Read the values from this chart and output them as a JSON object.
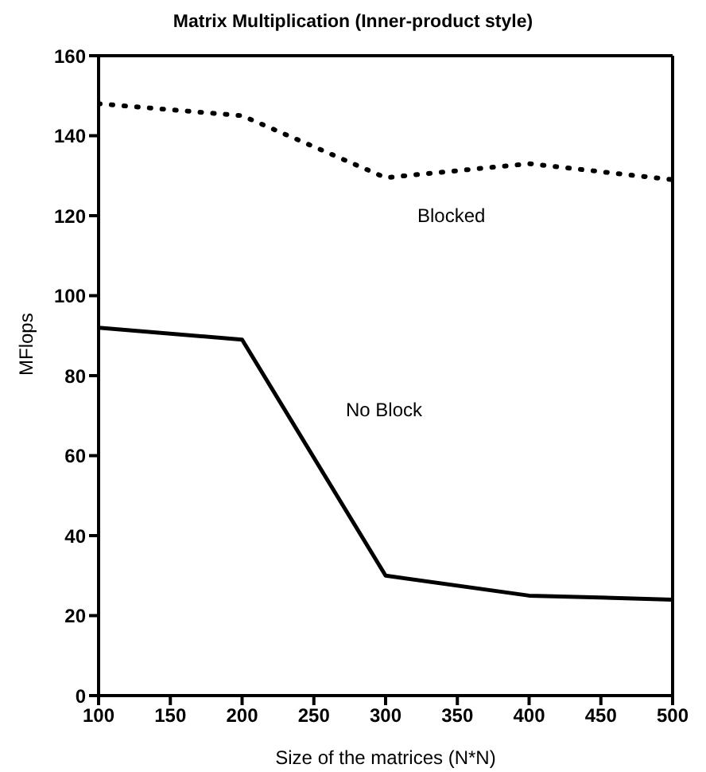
{
  "chart_data": {
    "type": "line",
    "title": "Matrix Multiplication (Inner-product style)",
    "xlabel": "Size of the matrices (N*N)",
    "ylabel": "MFlops",
    "x": [
      100,
      200,
      300,
      400,
      500
    ],
    "series": [
      {
        "name": "Blocked",
        "color": "#000000",
        "values": [
          148,
          145,
          129.5,
          133,
          129
        ],
        "line_style": "dotted"
      },
      {
        "name": "No Block",
        "color": "#000000",
        "values": [
          92,
          89,
          30,
          25,
          24
        ],
        "line_style": "solid"
      }
    ],
    "xlim": [
      100,
      500
    ],
    "xticks": [
      100,
      150,
      200,
      250,
      300,
      350,
      400,
      450,
      500
    ],
    "ylim": [
      0,
      160
    ],
    "yticks": [
      0,
      20,
      40,
      60,
      80,
      100,
      120,
      140,
      160
    ],
    "legend": false,
    "marker": "none"
  }
}
